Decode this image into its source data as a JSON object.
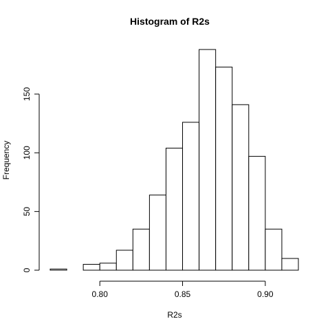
{
  "chart_data": {
    "type": "bar",
    "title": "Histogram of R2s",
    "xlabel": "R2s",
    "ylabel": "Frequency",
    "bin_edges": [
      0.77,
      0.78,
      0.79,
      0.8,
      0.81,
      0.82,
      0.83,
      0.84,
      0.85,
      0.86,
      0.87,
      0.88,
      0.89,
      0.9,
      0.91,
      0.92
    ],
    "values": [
      1,
      0,
      5,
      6,
      17,
      35,
      64,
      104,
      126,
      188,
      173,
      141,
      97,
      35,
      10
    ],
    "xticks": [
      0.8,
      0.85,
      0.9
    ],
    "xtick_labels": [
      "0.80",
      "0.85",
      "0.90"
    ],
    "yticks": [
      0,
      50,
      100,
      150
    ],
    "ytick_labels": [
      "0",
      "50",
      "100",
      "150"
    ],
    "xlim": [
      0.77,
      0.92
    ],
    "ylim": [
      0,
      188
    ],
    "grid": false,
    "bar_fill": "#ffffff",
    "bar_stroke": "#000000"
  }
}
